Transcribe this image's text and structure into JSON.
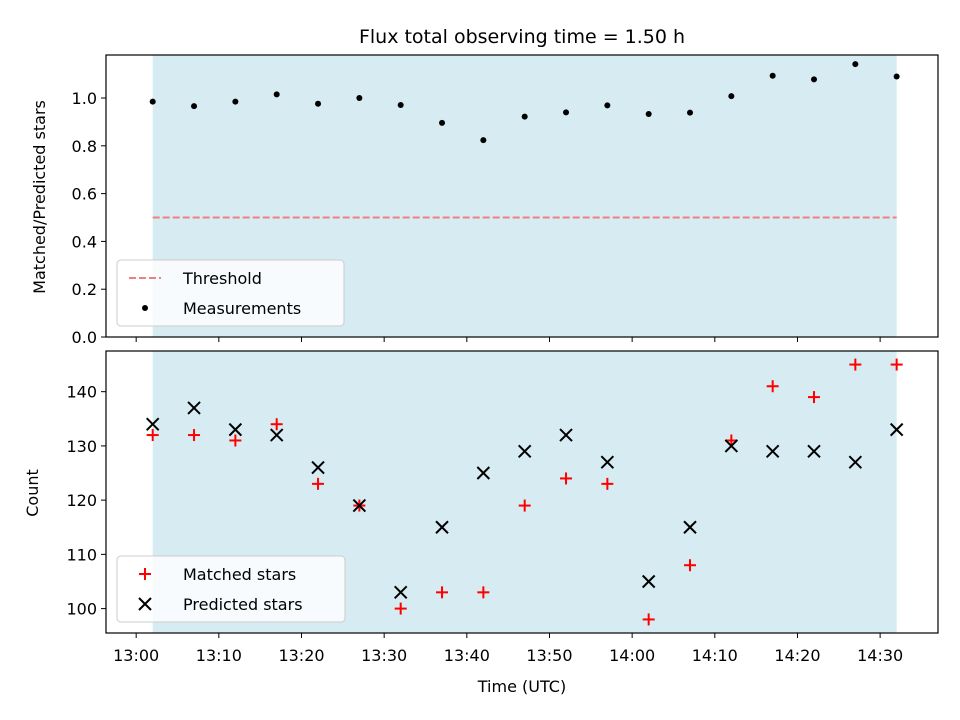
{
  "chart_data": {
    "title": "Flux total observing time = 1.50 h",
    "xlabel": "Time (UTC)",
    "x_ticks": [
      "13:00",
      "13:10",
      "13:20",
      "13:30",
      "13:40",
      "13:50",
      "14:00",
      "14:10",
      "14:20",
      "14:30"
    ],
    "shaded_span": [
      "13:02",
      "14:32"
    ],
    "colors": {
      "shade": "#add8e6",
      "threshold": "#f08080",
      "matched": "#ff0000",
      "predicted": "#000000",
      "measurement": "#000000"
    },
    "times": [
      "13:02",
      "13:07",
      "13:12",
      "13:17",
      "13:22",
      "13:27",
      "13:32",
      "13:37",
      "13:42",
      "13:47",
      "13:52",
      "13:57",
      "14:02",
      "14:07",
      "14:12",
      "14:17",
      "14:22",
      "14:27",
      "14:32"
    ],
    "top": {
      "type": "scatter",
      "ylabel": "Matched/Predicted stars",
      "ylim": [
        0,
        1.18
      ],
      "y_ticks": [
        "0.0",
        "0.2",
        "0.4",
        "0.6",
        "0.8",
        "1.0"
      ],
      "threshold": 0.5,
      "legend": {
        "placement": "lower-left",
        "entries": [
          "Threshold",
          "Measurements"
        ]
      },
      "series": [
        {
          "name": "Measurements",
          "values": [
            0.985,
            0.966,
            0.985,
            1.015,
            0.976,
            1.0,
            0.971,
            0.896,
            0.824,
            0.922,
            0.94,
            0.969,
            0.933,
            0.939,
            1.008,
            1.093,
            1.078,
            1.142,
            1.09
          ]
        }
      ]
    },
    "bottom": {
      "type": "scatter",
      "ylabel": "Count",
      "ylim": [
        95.5,
        147.5
      ],
      "y_ticks": [
        "100",
        "110",
        "120",
        "130",
        "140"
      ],
      "legend": {
        "placement": "lower-left",
        "entries": [
          "Matched stars",
          "Predicted stars"
        ]
      },
      "series": [
        {
          "name": "Matched stars",
          "values": [
            132,
            132,
            131,
            134,
            123,
            119,
            100,
            103,
            103,
            119,
            124,
            123,
            98,
            108,
            131,
            141,
            139,
            145,
            145
          ]
        },
        {
          "name": "Predicted stars",
          "values": [
            134,
            137,
            133,
            132,
            126,
            119,
            103,
            115,
            125,
            129,
            132,
            127,
            105,
            115,
            130,
            129,
            129,
            127,
            133
          ]
        }
      ]
    }
  }
}
